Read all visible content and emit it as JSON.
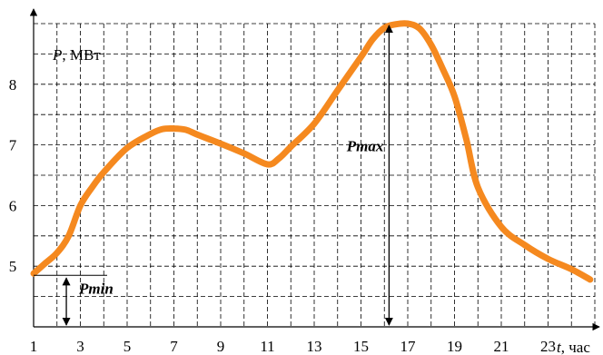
{
  "chart_data": {
    "type": "line",
    "title": "",
    "xlabel": {
      "var": "t",
      "unit": ", час"
    },
    "ylabel": {
      "var": "P",
      "unit": ", МВт"
    },
    "xticks": [
      1,
      3,
      5,
      7,
      9,
      11,
      13,
      15,
      17,
      19,
      21,
      23
    ],
    "yticks": [
      5,
      6,
      7,
      8
    ],
    "xlim": [
      1,
      25
    ],
    "ylim": [
      4.0,
      9.0
    ],
    "grid": true,
    "series": [
      {
        "name": "",
        "color": "#f5891f",
        "x": [
          1,
          1.5,
          2,
          2.5,
          3,
          3.5,
          4,
          5,
          6,
          6.5,
          7,
          7.5,
          8,
          9,
          10,
          11,
          11.5,
          12,
          13,
          14,
          15,
          15.5,
          16,
          16.5,
          17,
          17.5,
          18,
          18.5,
          19,
          19.5,
          20,
          21,
          22,
          23,
          24,
          24.8
        ],
        "y": [
          4.88,
          5.05,
          5.22,
          5.5,
          6.0,
          6.3,
          6.55,
          6.95,
          7.18,
          7.26,
          7.27,
          7.25,
          7.17,
          7.02,
          6.86,
          6.68,
          6.78,
          6.97,
          7.35,
          7.9,
          8.45,
          8.74,
          8.93,
          8.99,
          9.0,
          8.92,
          8.65,
          8.25,
          7.8,
          7.1,
          6.3,
          5.65,
          5.35,
          5.12,
          4.95,
          4.78
        ]
      }
    ],
    "annotations": [
      {
        "text": "Pmax",
        "x_from": 16.2,
        "x_to": 16.2,
        "y_from": 4.0,
        "y_to": 9.0
      },
      {
        "text": "Pmin",
        "x": 2.4,
        "y_from": 4.0,
        "y_to": 4.88
      }
    ]
  }
}
